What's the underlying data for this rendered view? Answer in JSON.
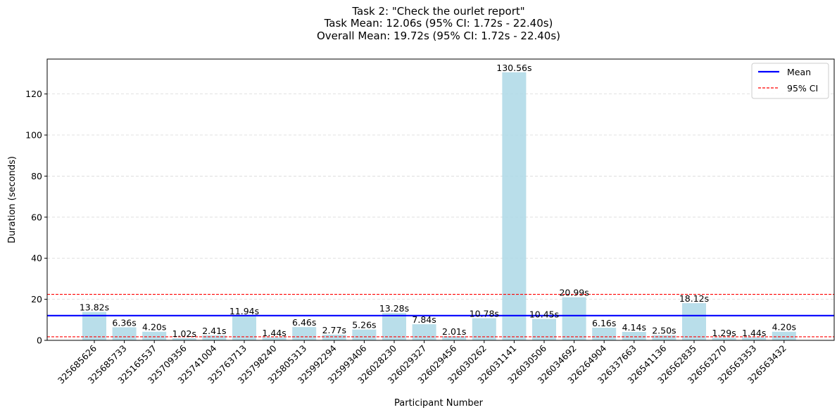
{
  "chart_data": {
    "type": "bar",
    "title_lines": [
      "Task 2: \"Check the ourlet report\"",
      "Task Mean: 12.06s (95% CI: 1.72s - 22.40s)",
      "Overall Mean: 19.72s (95% CI: 1.72s - 22.40s)"
    ],
    "xlabel": "Participant Number",
    "ylabel": "Duration (seconds)",
    "categories": [
      "325685626",
      "325685733",
      "325165537",
      "325709356",
      "325741004",
      "325763713",
      "325798240",
      "325805313",
      "325992294",
      "325993406",
      "326028230",
      "326029327",
      "326029456",
      "326030262",
      "326031141",
      "326030506",
      "326034692",
      "326264904",
      "326337663",
      "326541136",
      "326562835",
      "326563270",
      "326563353",
      "326563432"
    ],
    "values": [
      13.82,
      6.36,
      4.2,
      1.02,
      2.41,
      11.94,
      1.44,
      6.46,
      2.77,
      5.26,
      13.28,
      7.84,
      2.01,
      10.78,
      130.56,
      10.45,
      20.99,
      6.16,
      4.14,
      2.5,
      18.12,
      1.29,
      1.44,
      4.2
    ],
    "value_labels": [
      "13.82s",
      "6.36s",
      "4.20s",
      "1.02s",
      "2.41s",
      "11.94s",
      "1.44s",
      "6.46s",
      "2.77s",
      "5.26s",
      "13.28s",
      "7.84s",
      "2.01s",
      "10.78s",
      "130.56s",
      "10.45s",
      "20.99s",
      "6.16s",
      "4.14s",
      "2.50s",
      "18.12s",
      "1.29s",
      "1.44s",
      "4.20s"
    ],
    "mean": 12.06,
    "ci": [
      1.72,
      22.4
    ],
    "ylim": [
      0,
      137
    ],
    "yticks": [
      0,
      20,
      40,
      60,
      80,
      100,
      120
    ],
    "grid": "y-dashed",
    "legend": {
      "position": "top-right",
      "entries": [
        {
          "label": "Mean",
          "style": "solid",
          "color": "#0000ff"
        },
        {
          "label": "95% CI",
          "style": "dashed",
          "color": "#ff0000"
        }
      ]
    },
    "colors": {
      "bar": "#add8e6",
      "mean": "#0000ff",
      "ci": "#ff0000"
    }
  }
}
